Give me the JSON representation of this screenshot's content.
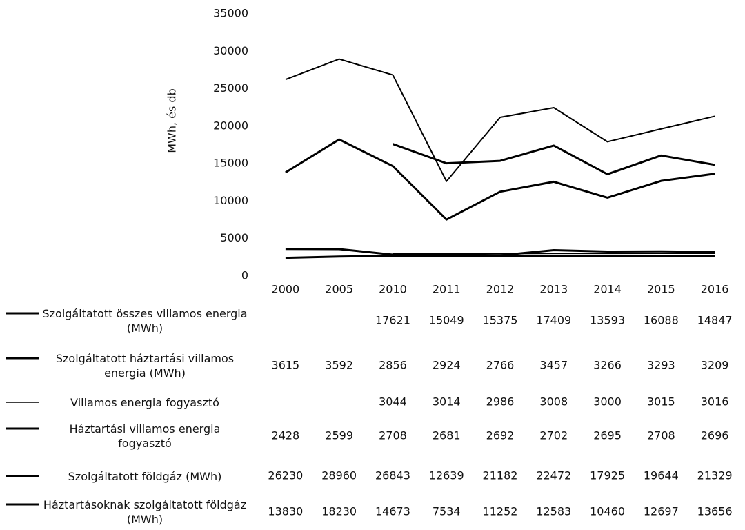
{
  "chart_data": {
    "type": "line",
    "ylabel": "MWh, és db",
    "categories": [
      "2000",
      "2005",
      "2010",
      "2011",
      "2012",
      "2013",
      "2014",
      "2015",
      "2016"
    ],
    "ylim": [
      0,
      35000
    ],
    "yticks": [
      0,
      5000,
      10000,
      15000,
      20000,
      25000,
      30000,
      35000
    ],
    "grid": false,
    "data_table": true,
    "series": [
      {
        "name": "Szolgáltatott összes villamos energia (MWh)",
        "color": "#000000",
        "width": 3,
        "values": [
          null,
          null,
          17621,
          15049,
          15375,
          17409,
          13593,
          16088,
          14847
        ]
      },
      {
        "name": "Szolgáltatott háztartási villamos energia (MWh)",
        "color": "#000000",
        "width": 3,
        "values": [
          3615,
          3592,
          2856,
          2924,
          2766,
          3457,
          3266,
          3293,
          3209
        ]
      },
      {
        "name": "Villamos energia fogyasztó",
        "color": "#000000",
        "width": 1.5,
        "values": [
          null,
          null,
          3044,
          3014,
          2986,
          3008,
          3000,
          3015,
          3016
        ]
      },
      {
        "name": "Háztartási villamos energia fogyasztó",
        "color": "#000000",
        "width": 3,
        "values": [
          2428,
          2599,
          2708,
          2681,
          2692,
          2702,
          2695,
          2708,
          2696
        ]
      },
      {
        "name": "Szolgáltatott földgáz (MWh)",
        "color": "#000000",
        "width": 2,
        "values": [
          26230,
          28960,
          26843,
          12639,
          21182,
          22472,
          17925,
          19644,
          21329
        ]
      },
      {
        "name": "Háztartásoknak szolgáltatott földgáz (MWh)",
        "color": "#000000",
        "width": 3,
        "values": [
          13830,
          18230,
          14673,
          7534,
          11252,
          12583,
          10460,
          12697,
          13656
        ]
      }
    ]
  }
}
